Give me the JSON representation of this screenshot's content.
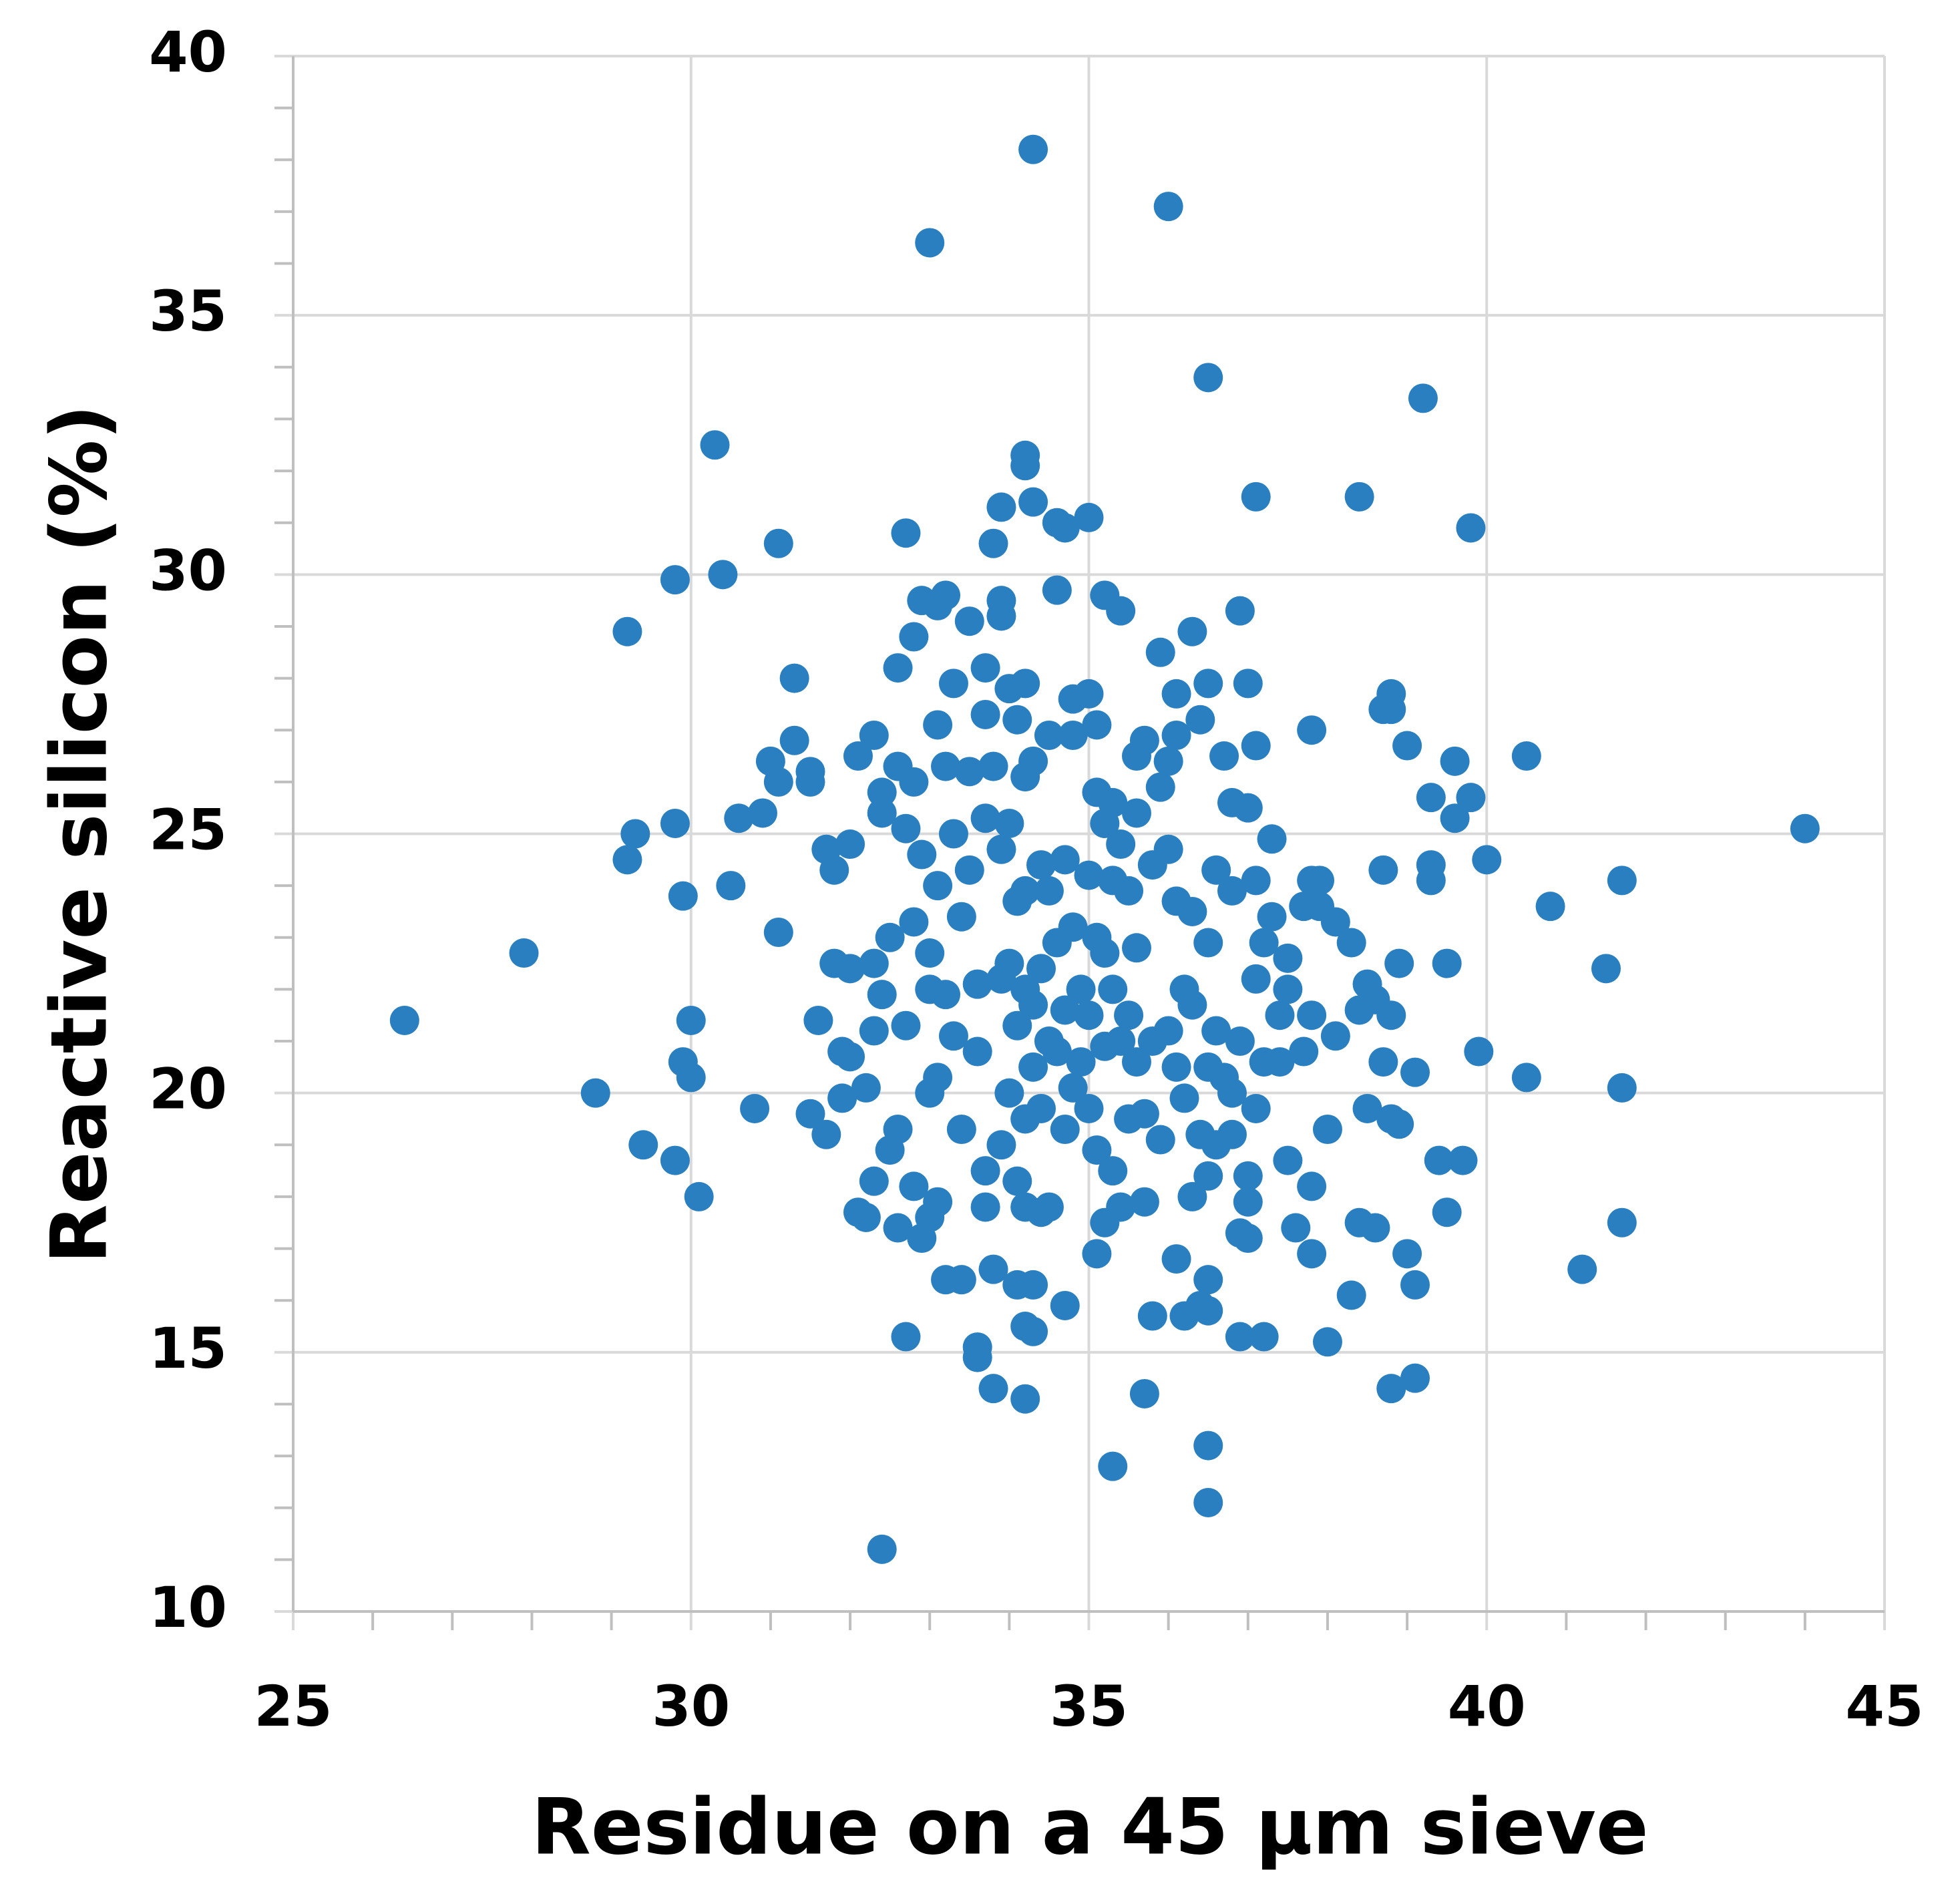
{
  "chart_data": {
    "type": "scatter",
    "x_label": "Residue on a 45 μm sieve",
    "y_label": "Reactive silicon (%)",
    "xlim": [
      25,
      45
    ],
    "xticks": [
      25,
      30,
      35,
      40,
      45
    ],
    "xminorticks": [
      26,
      27,
      28,
      29,
      31,
      32,
      33,
      34,
      36,
      37,
      38,
      39,
      41,
      42,
      43,
      44
    ],
    "ylim": [
      10,
      40
    ],
    "yticks": [
      10,
      15,
      20,
      25,
      30,
      35,
      40
    ],
    "yminorticks": [
      11,
      12,
      13,
      14,
      16,
      17,
      18,
      19,
      21,
      22,
      23,
      24,
      26,
      27,
      28,
      29,
      31,
      32,
      33,
      34,
      36,
      37,
      38,
      39
    ],
    "grid": true,
    "color": "#2a7fc1",
    "x": [
      26.4,
      27.9,
      28.8,
      29.2,
      29.2,
      29.3,
      29.4,
      29.8,
      29.8,
      29.8,
      29.9,
      29.9,
      30,
      30,
      30.1,
      30.3,
      30.4,
      30.5,
      30.6,
      30.8,
      30.9,
      31,
      31.1,
      31.1,
      31.1,
      31.3,
      31.3,
      31.5,
      31.5,
      31.5,
      31.6,
      31.7,
      31.7,
      31.8,
      31.8,
      31.9,
      31.9,
      32,
      32,
      32,
      32.1,
      32.1,
      32.2,
      32.2,
      32.3,
      32.3,
      32.3,
      32.3,
      32.4,
      32.4,
      32.4,
      32.4,
      32.5,
      32.5,
      32.6,
      32.6,
      32.6,
      32.6,
      32.7,
      32.7,
      32.7,
      32.7,
      32.8,
      32.8,
      32.8,
      32.8,
      32.9,
      32.9,
      32.9,
      33,
      33,
      33,
      33,
      33,
      33.1,
      33.1,
      33.1,
      33.1,
      33.1,
      33.2,
      33.2,
      33.2,
      33.2,
      33.3,
      33.3,
      33.3,
      33.4,
      33.4,
      33.4,
      33.5,
      33.5,
      33.5,
      33.6,
      33.6,
      33.6,
      33.6,
      33.7,
      33.7,
      33.7,
      33.7,
      33.7,
      33.8,
      33.8,
      33.8,
      33.8,
      33.9,
      33.9,
      33.9,
      33.9,
      33.9,
      33.9,
      34,
      34,
      34,
      34,
      34.1,
      34.1,
      34.1,
      34.1,
      34.1,
      34.2,
      34.2,
      34.2,
      34.2,
      34.2,
      34.2,
      34.2,
      34.2,
      34.2,
      34.2,
      34.3,
      34.3,
      34.3,
      34.3,
      34.3,
      34.3,
      34.3,
      34.4,
      34.4,
      34.4,
      34.4,
      34.5,
      34.5,
      34.5,
      34.5,
      34.6,
      34.6,
      34.6,
      34.6,
      34.7,
      34.7,
      34.7,
      34.7,
      34.7,
      34.8,
      34.8,
      34.8,
      34.8,
      34.9,
      34.9,
      35,
      35,
      35,
      35,
      35,
      35.1,
      35.1,
      35.1,
      35.1,
      35.1,
      35.2,
      35.2,
      35.2,
      35.2,
      35.2,
      35.3,
      35.3,
      35.3,
      35.3,
      35.3,
      35.4,
      35.4,
      35.4,
      35.4,
      35.5,
      35.5,
      35.5,
      35.6,
      35.6,
      35.6,
      35.6,
      35.7,
      35.7,
      35.7,
      35.7,
      35.8,
      35.8,
      35.8,
      35.9,
      35.9,
      35.9,
      36,
      36,
      36,
      36,
      36.1,
      36.1,
      36.1,
      36.1,
      36.1,
      36.2,
      36.2,
      36.2,
      36.3,
      36.3,
      36.3,
      36.3,
      36.4,
      36.4,
      36.4,
      36.5,
      36.5,
      36.5,
      36.5,
      36.5,
      36.5,
      36.5,
      36.5,
      36.5,
      36.6,
      36.6,
      36.6,
      36.7,
      36.7,
      36.8,
      36.8,
      36.8,
      36.8,
      36.9,
      36.9,
      36.9,
      36.9,
      37,
      37,
      37,
      37,
      37,
      37.1,
      37.1,
      37.1,
      37.1,
      37.1,
      37.2,
      37.2,
      37.2,
      37.3,
      37.3,
      37.4,
      37.4,
      37.5,
      37.5,
      37.5,
      37.6,
      37.7,
      37.7,
      37.8,
      37.8,
      37.8,
      37.8,
      37.8,
      37.9,
      37.9,
      38,
      38,
      38.1,
      38.1,
      38.3,
      38.3,
      38.4,
      38.4,
      38.4,
      38.5,
      38.5,
      38.6,
      38.6,
      38.7,
      38.7,
      38.7,
      38.8,
      38.8,
      38.8,
      38.8,
      38.8,
      38.9,
      38.9,
      39,
      39,
      39.1,
      39.1,
      39.1,
      39.2,
      39.3,
      39.3,
      39.3,
      39.4,
      39.5,
      39.5,
      39.6,
      39.6,
      39.7,
      39.8,
      39.8,
      39.9,
      40,
      40.5,
      40.5,
      40.8,
      41.2,
      41.5,
      41.7,
      41.7,
      41.7,
      44
    ],
    "values": [
      21.4,
      22.7,
      20,
      28.9,
      24.5,
      25,
      19,
      25.2,
      29.9,
      18.7,
      23.8,
      20.6,
      21.4,
      20.3,
      18,
      32.5,
      30,
      24,
      25.3,
      19.7,
      25.4,
      26.4,
      30.6,
      26,
      23.1,
      28,
      26.8,
      26.2,
      26,
      19.6,
      21.4,
      24.7,
      19.2,
      24.3,
      22.5,
      20.8,
      19.9,
      22.4,
      20.7,
      24.8,
      26.5,
      17.7,
      20.1,
      17.6,
      26.9,
      22.5,
      18.3,
      21.2,
      25.8,
      25.4,
      21.9,
      11.2,
      23,
      18.9,
      28.2,
      26.3,
      17.4,
      19.3,
      30.8,
      25.1,
      15.3,
      21.3,
      28.8,
      26,
      23.3,
      18.2,
      29.5,
      24.6,
      17.2,
      36.4,
      22.7,
      22,
      20,
      17.6,
      29.4,
      27.1,
      24,
      20.3,
      17.9,
      29.6,
      26.3,
      21.9,
      16.4,
      27.9,
      25,
      21.1,
      19.3,
      16.4,
      23.4,
      29.1,
      26.2,
      24.3,
      22.1,
      20.8,
      15.1,
      14.9,
      28.2,
      27.3,
      25.3,
      18.5,
      17.8,
      30.6,
      26.3,
      16.6,
      14.3,
      31.3,
      29.5,
      29.2,
      24.7,
      22.2,
      19,
      27.8,
      25.2,
      22.5,
      20,
      27.2,
      23.7,
      21.3,
      18.3,
      16.3,
      32.3,
      32.1,
      27.9,
      26.1,
      23.9,
      22,
      19.5,
      17.8,
      15.5,
      14.1,
      38.2,
      31.4,
      26.4,
      21.7,
      20.5,
      16.3,
      15.4,
      24.4,
      22.4,
      19.7,
      17.7,
      26.9,
      23.9,
      21,
      17.8,
      31,
      29.7,
      22.9,
      20.8,
      30.9,
      24.5,
      21.6,
      19.3,
      15.9,
      27.6,
      26.9,
      23.2,
      20.1,
      22,
      20.6,
      31.1,
      27.7,
      24.2,
      21.5,
      19.7,
      27.1,
      25.8,
      23,
      18.9,
      16.9,
      29.6,
      25.2,
      22.7,
      20.9,
      17.5,
      25.6,
      24.1,
      22,
      18.5,
      12.8,
      29.3,
      24.8,
      21,
      17.8,
      23.9,
      21.5,
      19.5,
      26.5,
      25.4,
      22.8,
      20.6,
      26.8,
      19.6,
      17.9,
      14.2,
      24.4,
      21,
      15.7,
      28.5,
      25.9,
      19.1,
      37.1,
      26.4,
      24.7,
      21.2,
      27.7,
      26.9,
      23.7,
      20.5,
      16.8,
      22,
      19.9,
      15.7,
      28.9,
      23.5,
      21.7,
      18,
      27.2,
      19.2,
      15.9,
      33.8,
      27.9,
      22.9,
      20.5,
      18.4,
      16.4,
      15.8,
      13.2,
      12.1,
      24.3,
      21.2,
      19,
      26.5,
      20.3,
      25.6,
      23.9,
      20,
      19.2,
      29.3,
      21,
      17.3,
      15.3,
      27.9,
      25.5,
      18.4,
      17.9,
      17.2,
      31.5,
      26.7,
      24.1,
      22.2,
      19.7,
      22.9,
      20.6,
      15.3,
      24.9,
      23.4,
      21.5,
      20.6,
      22.6,
      22,
      18.7,
      17.4,
      23.6,
      20.8,
      27,
      24.1,
      21.5,
      18.2,
      16.9,
      24.1,
      23.6,
      19.3,
      15.2,
      23.3,
      21.1,
      22.9,
      16.1,
      31.5,
      21.6,
      17.5,
      22.1,
      19.7,
      21.8,
      17.4,
      27.4,
      24.3,
      20.6,
      27.7,
      27.4,
      21.5,
      19.5,
      14.3,
      22.5,
      19.4,
      26.7,
      16.9,
      20.4,
      16.3,
      14.5,
      33.4,
      25.7,
      24.4,
      24.1,
      18.7,
      22.5,
      17.7,
      26.4,
      25.3,
      18.7,
      30.9,
      25.7,
      20.8,
      24.5,
      26.5,
      20.3,
      23.6,
      16.6,
      22.4,
      24.1,
      20.1,
      17.5,
      25.1
    ]
  }
}
